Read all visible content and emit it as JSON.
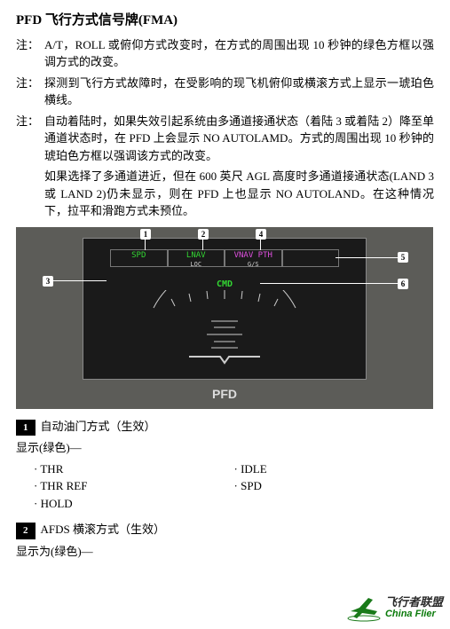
{
  "title": "PFD 飞行方式信号牌(FMA)",
  "notes": [
    {
      "label": "注：",
      "text": "A/T，ROLL 或俯仰方式改变时，在方式的周围出现 10 秒钟的绿色方框以强调方式的改变。"
    },
    {
      "label": "注：",
      "text": "探测到飞行方式故障时，在受影响的现飞机俯仰或横滚方式上显示一琥珀色横线。"
    },
    {
      "label": "注：",
      "text": "自动着陆时，如果失效引起系统由多通道接通状态（着陆 3 或着陆 2）降至单通道状态时，在 PFD 上会显示 NO AUTOLAMD。方式的周围出现 10 秒钟的琥珀色方框以强调该方式的改变。"
    }
  ],
  "para2": "如果选择了多通道进近，但在 600 英尺 AGL 高度时多通道接通状态(LAND 3 或 LAND 2)仍未显示，则在 PFD 上也显示 NO AUTOLAND。在这种情况下，拉平和滑跑方式未预位。",
  "pfd": {
    "bg": "#5c5c58",
    "inner_bg": "#1a1a1a",
    "fma_cells": [
      {
        "top": "SPD",
        "sub": "",
        "cls": "fma-green"
      },
      {
        "top": "LNAV",
        "sub": "LOC",
        "cls": "fma-green"
      },
      {
        "top": "VNAV PTH",
        "sub": "G/S",
        "cls": "fma-mag"
      },
      {
        "top": "",
        "sub": "",
        "cls": ""
      }
    ],
    "cmd": "CMD",
    "label": "PFD",
    "callouts": {
      "c1": "1",
      "c2": "2",
      "c4": "4",
      "c3": "3",
      "c5": "5",
      "c6": "6"
    }
  },
  "sections": [
    {
      "num": "1",
      "title": "自动油门方式（生效）",
      "sub": "显示(绿色)—",
      "items_left": [
        "THR",
        "THR REF",
        "HOLD"
      ],
      "items_right": [
        "IDLE",
        "SPD"
      ]
    },
    {
      "num": "2",
      "title": "AFDS 横滚方式（生效）",
      "sub": "显示为(绿色)—",
      "items_left": [],
      "items_right": []
    }
  ],
  "logo": {
    "cn": "飞行者联盟",
    "en": "China Flier"
  }
}
